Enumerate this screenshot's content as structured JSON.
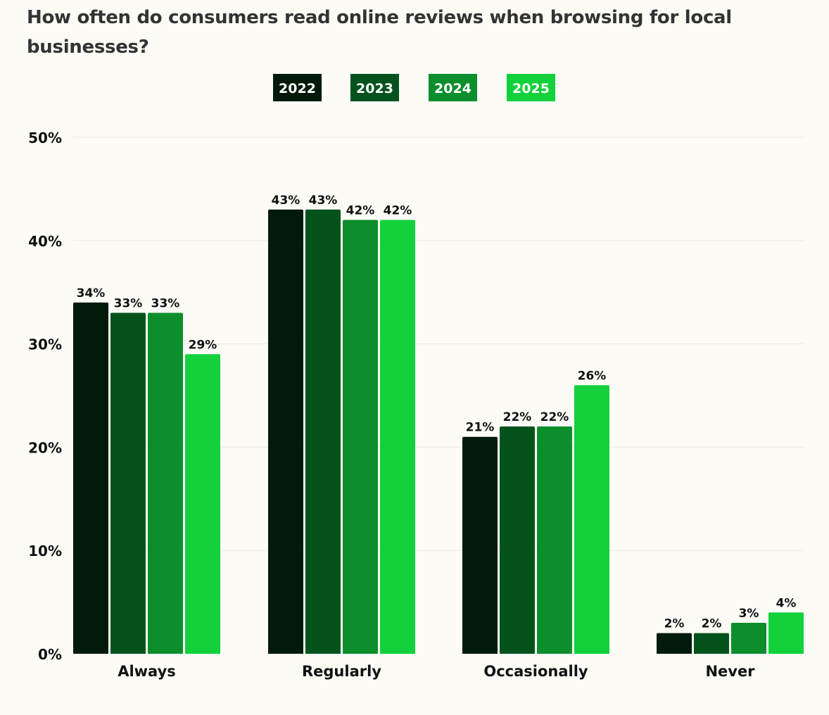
{
  "title": "How often do consumers read online reviews when browsing for local businesses?",
  "chart_data": {
    "type": "bar",
    "title": "How often do consumers read online reviews when browsing for local businesses?",
    "xlabel": "",
    "ylabel": "",
    "categories": [
      "Always",
      "Regularly",
      "Occasionally",
      "Never"
    ],
    "series": [
      {
        "name": "2022",
        "color": "#021a0a",
        "values": [
          34,
          43,
          21,
          2
        ]
      },
      {
        "name": "2023",
        "color": "#05531c",
        "values": [
          33,
          43,
          22,
          2
        ]
      },
      {
        "name": "2024",
        "color": "#0c8e2c",
        "values": [
          33,
          42,
          22,
          3
        ]
      },
      {
        "name": "2025",
        "color": "#12d13b",
        "values": [
          29,
          42,
          26,
          4
        ]
      }
    ],
    "ylim": [
      0,
      50
    ],
    "yticks": [
      "0%",
      "10%",
      "20%",
      "30%",
      "40%",
      "50%"
    ],
    "value_suffix": "%",
    "grid": true,
    "legend_position": "top-center"
  }
}
